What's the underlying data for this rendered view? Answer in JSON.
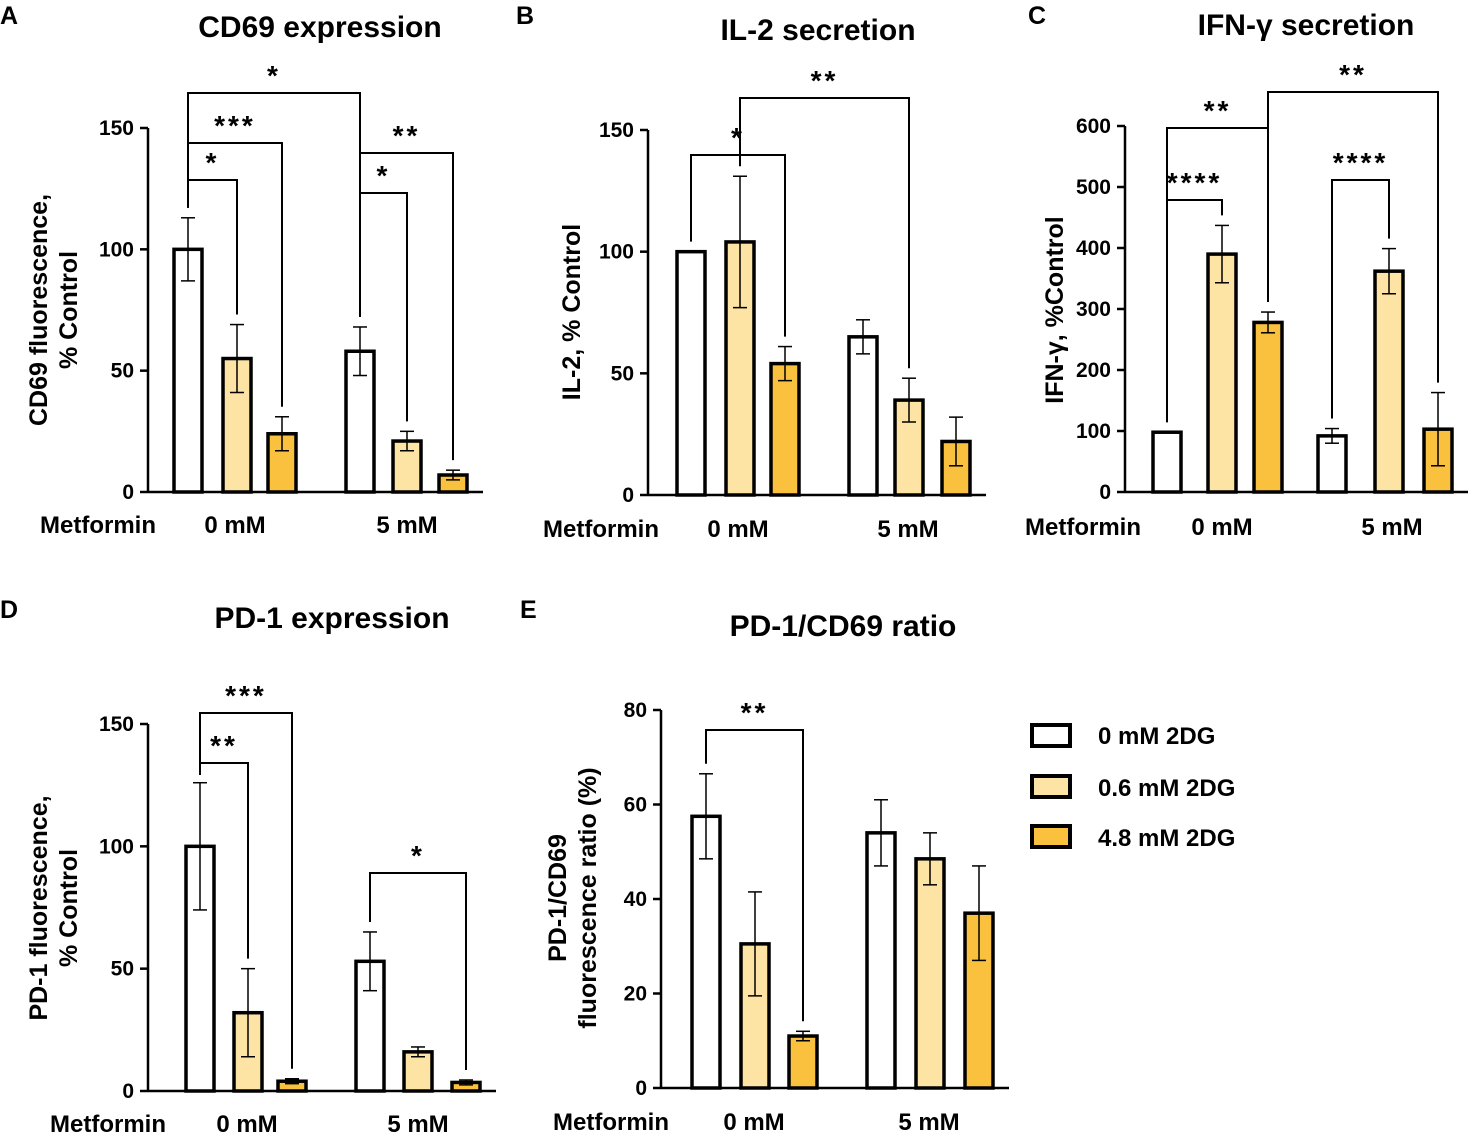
{
  "legend": {
    "items": [
      {
        "label": "0 mM 2DG",
        "color": "#ffffff"
      },
      {
        "label": "0.6 mM 2DG",
        "color": "#fde3a4"
      },
      {
        "label": "4.8 mM 2DG",
        "color": "#f9c13e"
      }
    ]
  },
  "chart_data": [
    {
      "panel": "A",
      "type": "bar",
      "title": "CD69 expression",
      "ylabel_lines": [
        "CD69 fluorescence,",
        "% Control"
      ],
      "xlabel": "Metformin",
      "categories": [
        "0 mM",
        "5 mM"
      ],
      "ylim": [
        0,
        150
      ],
      "yticks": [
        0,
        50,
        100,
        150
      ],
      "series": [
        {
          "name": "0 mM 2DG",
          "values": [
            100,
            58
          ],
          "errors": [
            13,
            10
          ]
        },
        {
          "name": "0.6 mM 2DG",
          "values": [
            55,
            21
          ],
          "errors": [
            14,
            4
          ]
        },
        {
          "name": "4.8 mM 2DG",
          "values": [
            24,
            7
          ],
          "errors": [
            7,
            2
          ]
        }
      ],
      "significance": [
        {
          "from": [
            0,
            0
          ],
          "to": [
            0,
            1
          ],
          "label": "*"
        },
        {
          "from": [
            0,
            0
          ],
          "to": [
            0,
            2
          ],
          "label": "***"
        },
        {
          "from": [
            0,
            0
          ],
          "to": [
            1,
            0
          ],
          "label": "*"
        },
        {
          "from": [
            1,
            0
          ],
          "to": [
            1,
            1
          ],
          "label": "*"
        },
        {
          "from": [
            1,
            0
          ],
          "to": [
            1,
            2
          ],
          "label": "**"
        }
      ]
    },
    {
      "panel": "B",
      "type": "bar",
      "title": "IL-2 secretion",
      "ylabel_lines": [
        "IL-2, % Control"
      ],
      "xlabel": "Metformin",
      "categories": [
        "0 mM",
        "5 mM"
      ],
      "ylim": [
        0,
        150
      ],
      "yticks": [
        0,
        50,
        100,
        150
      ],
      "series": [
        {
          "name": "0 mM 2DG",
          "values": [
            100,
            65
          ],
          "errors": [
            0,
            7
          ]
        },
        {
          "name": "0.6 mM 2DG",
          "values": [
            104,
            39
          ],
          "errors": [
            27,
            9
          ]
        },
        {
          "name": "4.8 mM 2DG",
          "values": [
            54,
            22
          ],
          "errors": [
            7,
            10
          ]
        }
      ],
      "significance": [
        {
          "from": [
            0,
            0
          ],
          "to": [
            0,
            2
          ],
          "label": "*"
        },
        {
          "from": [
            0,
            1
          ],
          "to": [
            1,
            1
          ],
          "label": "**"
        }
      ]
    },
    {
      "panel": "C",
      "type": "bar",
      "title": "IFN-γ secretion",
      "ylabel_lines": [
        "IFN-γ, %Control"
      ],
      "xlabel": "Metformin",
      "categories": [
        "0 mM",
        "5 mM"
      ],
      "ylim": [
        0,
        600
      ],
      "yticks": [
        0,
        100,
        200,
        300,
        400,
        500,
        600
      ],
      "series": [
        {
          "name": "0 mM 2DG",
          "values": [
            98,
            92
          ],
          "errors": [
            0,
            12
          ]
        },
        {
          "name": "0.6 mM 2DG",
          "values": [
            390,
            362
          ],
          "errors": [
            47,
            37
          ]
        },
        {
          "name": "4.8 mM 2DG",
          "values": [
            278,
            103
          ],
          "errors": [
            17,
            60
          ]
        }
      ],
      "significance": [
        {
          "from": [
            0,
            0
          ],
          "to": [
            0,
            1
          ],
          "label": "****"
        },
        {
          "from": [
            0,
            0
          ],
          "to": [
            0,
            2
          ],
          "label": "**"
        },
        {
          "from": [
            1,
            0
          ],
          "to": [
            1,
            1
          ],
          "label": "****"
        },
        {
          "from": [
            0,
            2
          ],
          "to": [
            1,
            2
          ],
          "label": "**"
        }
      ]
    },
    {
      "panel": "D",
      "type": "bar",
      "title": "PD-1 expression",
      "ylabel_lines": [
        "PD-1 fluorescence,",
        "% Control"
      ],
      "xlabel": "Metformin",
      "categories": [
        "0 mM",
        "5 mM"
      ],
      "ylim": [
        0,
        150
      ],
      "yticks": [
        0,
        50,
        100,
        150
      ],
      "series": [
        {
          "name": "0 mM 2DG",
          "values": [
            100,
            53
          ],
          "errors": [
            26,
            12
          ]
        },
        {
          "name": "0.6 mM 2DG",
          "values": [
            32,
            16
          ],
          "errors": [
            18,
            2
          ]
        },
        {
          "name": "4.8 mM 2DG",
          "values": [
            4,
            3.5
          ],
          "errors": [
            1,
            1
          ]
        }
      ],
      "significance": [
        {
          "from": [
            0,
            0
          ],
          "to": [
            0,
            1
          ],
          "label": "**"
        },
        {
          "from": [
            0,
            0
          ],
          "to": [
            0,
            2
          ],
          "label": "***"
        },
        {
          "from": [
            1,
            0
          ],
          "to": [
            1,
            2
          ],
          "label": "*"
        }
      ]
    },
    {
      "panel": "E",
      "type": "bar",
      "title": "PD-1/CD69 ratio",
      "ylabel_lines": [
        "PD-1/CD69",
        "fluorescence ratio (%)"
      ],
      "xlabel": "Metformin",
      "categories": [
        "0 mM",
        "5 mM"
      ],
      "ylim": [
        0,
        80
      ],
      "yticks": [
        0,
        20,
        40,
        60,
        80
      ],
      "series": [
        {
          "name": "0 mM 2DG",
          "values": [
            57.5,
            54
          ],
          "errors": [
            9,
            7
          ]
        },
        {
          "name": "0.6 mM 2DG",
          "values": [
            30.5,
            48.5
          ],
          "errors": [
            11,
            5.5
          ]
        },
        {
          "name": "4.8 mM 2DG",
          "values": [
            11,
            37
          ],
          "errors": [
            1,
            10
          ]
        }
      ],
      "significance": [
        {
          "from": [
            0,
            0
          ],
          "to": [
            0,
            2
          ],
          "label": "**"
        }
      ]
    }
  ]
}
